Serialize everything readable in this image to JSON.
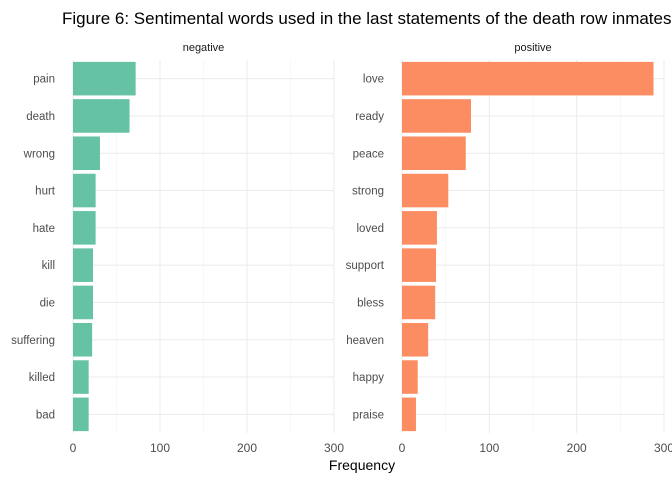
{
  "title": "Figure 6: Sentimental words used in the last statements of the death row inmates",
  "chart_data": {
    "type": "bar",
    "orientation": "horizontal",
    "title": "Figure 6: Sentimental words used in the last statements of the death row inmates",
    "xlabel": "Frequency",
    "ylabel": "",
    "xlim": [
      0,
      300
    ],
    "x_ticks": [
      "0",
      "100",
      "200",
      "300"
    ],
    "grid": true,
    "panels": [
      {
        "name": "negative",
        "color": "#66c2a5",
        "categories": [
          "pain",
          "death",
          "wrong",
          "hurt",
          "hate",
          "kill",
          "die",
          "suffering",
          "killed",
          "bad"
        ],
        "values": [
          72,
          65,
          31,
          26,
          26,
          23,
          23,
          22,
          18,
          18
        ]
      },
      {
        "name": "positive",
        "color": "#fc8d62",
        "categories": [
          "love",
          "ready",
          "peace",
          "strong",
          "loved",
          "support",
          "bless",
          "heaven",
          "happy",
          "praise"
        ],
        "values": [
          288,
          79,
          73,
          53,
          40,
          39,
          38,
          30,
          18,
          16
        ]
      }
    ]
  }
}
